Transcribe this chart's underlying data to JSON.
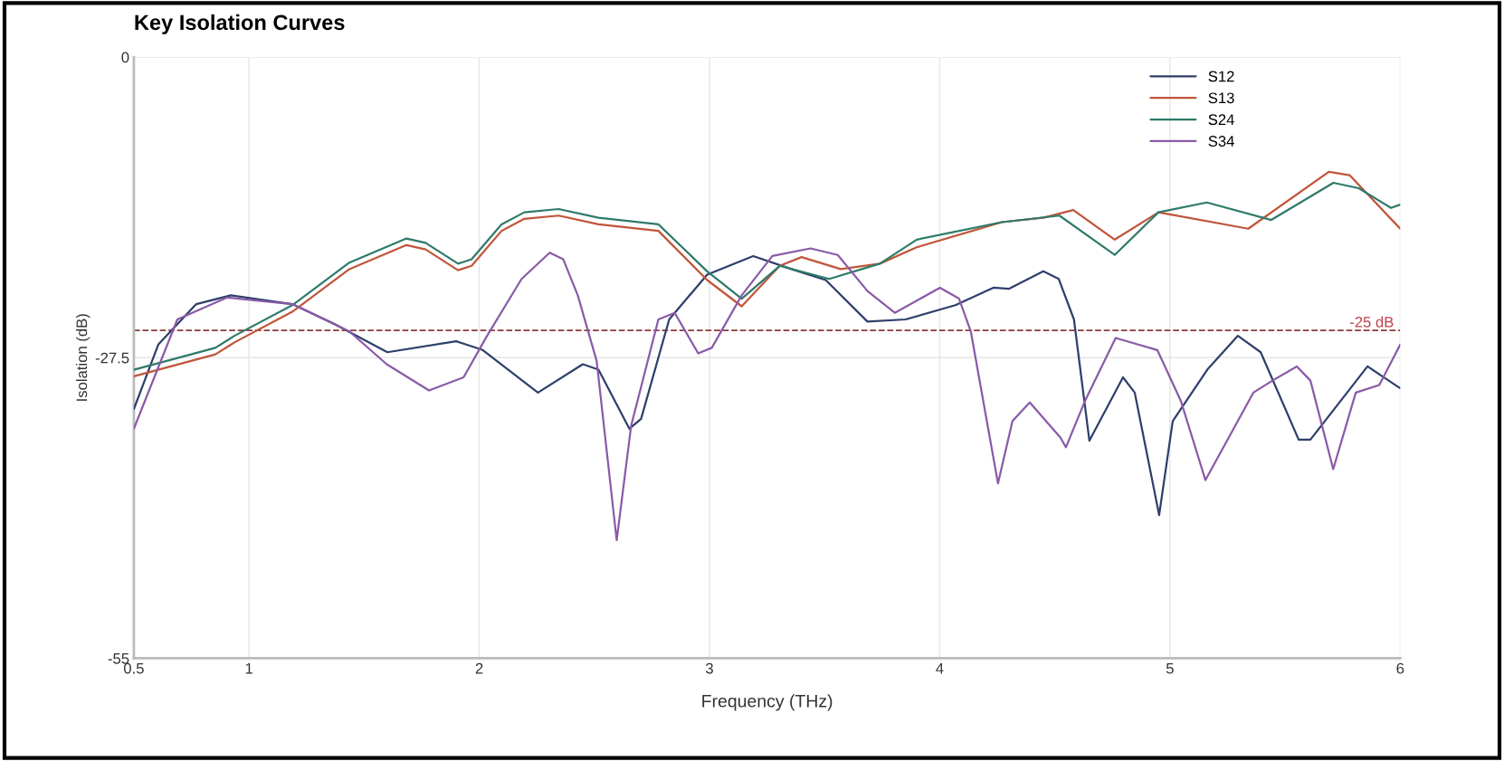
{
  "chart_data": {
    "type": "line",
    "title": "Key Isolation Curves",
    "xlabel": "Frequency (THz)",
    "ylabel": "Isolation (dB)",
    "xlim": [
      0.5,
      6
    ],
    "xticks": [
      0.5,
      1,
      2,
      3,
      4,
      5,
      6
    ],
    "ylim": [
      -55,
      0
    ],
    "yticks": [
      {
        "value": 0,
        "label": "0"
      },
      {
        "value": -27.5,
        "label": "-27.5"
      },
      {
        "value": -55,
        "label": "-55"
      }
    ],
    "grid": true,
    "legend": "top right",
    "line_style": "solid",
    "marker": "none",
    "ref_lines": [
      {
        "axis": "y",
        "value": -25,
        "label": "-25 dB",
        "color": "#8b3a3a",
        "line_style": "dashed"
      }
    ],
    "series": [
      {
        "name": "S12",
        "color": "#2e3f6b",
        "x": [
          0.5,
          0.606,
          0.771,
          0.921,
          1.188,
          1.369,
          1.601,
          1.9,
          2.015,
          2.255,
          2.45,
          2.518,
          2.652,
          2.703,
          2.825,
          2.99,
          3.19,
          3.356,
          3.505,
          3.686,
          3.852,
          4.068,
          4.233,
          4.3,
          4.45,
          4.517,
          4.583,
          4.65,
          4.796,
          4.847,
          4.953,
          5.012,
          5.162,
          5.295,
          5.394,
          5.559,
          5.61,
          5.858,
          6.0
        ],
        "values": [
          -32.2,
          -26.3,
          -22.6,
          -21.8,
          -22.6,
          -24.4,
          -27.0,
          -26.0,
          -26.8,
          -30.7,
          -28.1,
          -28.6,
          -34.0,
          -33.1,
          -24.0,
          -19.9,
          -18.2,
          -19.4,
          -20.4,
          -24.2,
          -24.0,
          -22.7,
          -21.1,
          -21.2,
          -19.6,
          -20.3,
          -24.0,
          -35.1,
          -29.3,
          -30.7,
          -41.9,
          -33.3,
          -28.6,
          -25.5,
          -27.0,
          -35.0,
          -35.0,
          -28.3,
          -30.3
        ]
      },
      {
        "name": "S13",
        "color": "#c0553a",
        "x": [
          0.5,
          0.854,
          0.937,
          1.188,
          1.436,
          1.684,
          1.767,
          1.908,
          1.967,
          2.097,
          2.196,
          2.345,
          2.518,
          2.778,
          2.99,
          3.14,
          3.305,
          3.4,
          3.57,
          3.74,
          3.9,
          4.27,
          4.45,
          4.58,
          4.76,
          4.95,
          5.34,
          5.69,
          5.78,
          6.0
        ],
        "values": [
          -29.2,
          -27.2,
          -26.1,
          -23.3,
          -19.4,
          -17.2,
          -17.6,
          -19.5,
          -19.1,
          -15.9,
          -14.8,
          -14.5,
          -15.3,
          -15.9,
          -20.4,
          -22.8,
          -19.1,
          -18.3,
          -19.4,
          -18.9,
          -17.4,
          -15.1,
          -14.7,
          -14.0,
          -16.7,
          -14.2,
          -15.7,
          -10.5,
          -10.8,
          -15.7
        ]
      },
      {
        "name": "S24",
        "color": "#2e7a6a",
        "x": [
          0.5,
          0.854,
          0.937,
          1.188,
          1.436,
          1.684,
          1.767,
          1.908,
          1.967,
          2.097,
          2.196,
          2.345,
          2.518,
          2.778,
          2.99,
          3.14,
          3.305,
          3.52,
          3.74,
          3.9,
          4.27,
          4.52,
          4.76,
          4.95,
          5.16,
          5.44,
          5.71,
          5.82,
          5.96,
          6.0
        ],
        "values": [
          -28.6,
          -26.6,
          -25.5,
          -22.7,
          -18.8,
          -16.6,
          -17.0,
          -18.9,
          -18.5,
          -15.3,
          -14.2,
          -13.9,
          -14.7,
          -15.3,
          -19.6,
          -22.1,
          -19.1,
          -20.3,
          -18.9,
          -16.7,
          -15.1,
          -14.5,
          -18.1,
          -14.2,
          -13.3,
          -14.9,
          -11.5,
          -12.0,
          -13.8,
          -13.5
        ]
      },
      {
        "name": "S34",
        "color": "#8a5aa8",
        "x": [
          0.5,
          0.689,
          0.905,
          1.188,
          1.436,
          1.598,
          1.782,
          1.932,
          2.034,
          2.184,
          2.306,
          2.365,
          2.428,
          2.51,
          2.597,
          2.66,
          2.778,
          2.849,
          2.951,
          3.01,
          3.14,
          3.273,
          3.439,
          3.557,
          3.686,
          3.805,
          4.001,
          4.084,
          4.135,
          4.253,
          4.316,
          4.391,
          4.524,
          4.548,
          4.63,
          4.764,
          4.945,
          5.048,
          5.154,
          5.362,
          5.445,
          5.551,
          5.61,
          5.709,
          5.807,
          5.909,
          6.0
        ],
        "values": [
          -34.0,
          -24.0,
          -22.0,
          -22.6,
          -25.1,
          -28.1,
          -30.5,
          -29.3,
          -25.5,
          -20.3,
          -17.9,
          -18.5,
          -21.8,
          -27.8,
          -44.2,
          -33.7,
          -24.0,
          -23.4,
          -27.1,
          -26.6,
          -21.8,
          -18.2,
          -17.5,
          -18.1,
          -21.4,
          -23.4,
          -21.1,
          -22.1,
          -25.1,
          -39.0,
          -33.3,
          -31.6,
          -34.8,
          -35.7,
          -31.5,
          -25.7,
          -26.8,
          -31.5,
          -38.7,
          -30.7,
          -29.6,
          -28.3,
          -29.6,
          -37.7,
          -30.7,
          -30.0,
          -26.3
        ]
      }
    ]
  }
}
